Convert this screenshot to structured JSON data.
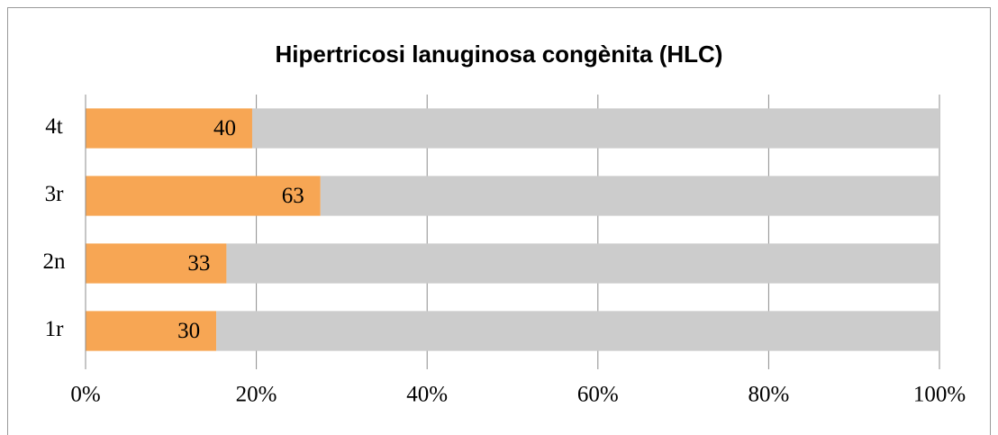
{
  "chart_data": {
    "type": "bar",
    "orientation": "horizontal",
    "stacking": "percent",
    "title": "Hipertricosi lanuginosa congènita (HLC)",
    "categories": [
      "1r",
      "2n",
      "3r",
      "4t"
    ],
    "series": [
      {
        "color": "#f7a654",
        "values": [
          30,
          33,
          63,
          40
        ],
        "data_labels": true
      },
      {
        "color": "#cccccc",
        "values": [
          166,
          167,
          166,
          165
        ],
        "data_labels": false
      }
    ],
    "xlim": [
      0,
      100
    ],
    "xticks": [
      {
        "value": 0,
        "label": "0%"
      },
      {
        "value": 20,
        "label": "20%"
      },
      {
        "value": 40,
        "label": "40%"
      },
      {
        "value": 60,
        "label": "60%"
      },
      {
        "value": 80,
        "label": "80%"
      },
      {
        "value": 100,
        "label": "100%"
      }
    ],
    "grid": true
  }
}
